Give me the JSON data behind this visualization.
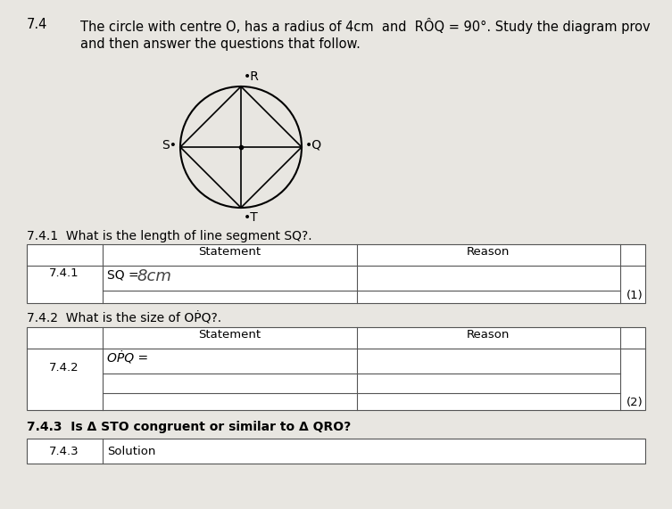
{
  "title_number": "7.4",
  "title_text": "The circle with centre O, has a radius of 4cm  and  RÔQ = 90°. Study the diagram prov",
  "subtitle_text": "and then answer the questions that follow.",
  "bg_color": "#e8e6e1",
  "q741_label": "7.4.1  What is the length of line segment SQ?.",
  "q742_label": "7.4.2  What is the size of OṖQ?.",
  "q743_label": "7.4.3  Is Δ STO congruent or similar to Δ QRO?",
  "table741": {
    "number": "7.4.1",
    "col1": "Statement",
    "col2": "Reason",
    "row1_col1": "SQ =  8cm",
    "mark": "(1)"
  },
  "table742": {
    "number": "7.4.2",
    "col1": "Statement",
    "col2": "Reason",
    "row1_col1": "OṖQ =",
    "mark": "(2)"
  },
  "font_size_title": 10.5,
  "font_size_body": 10,
  "font_size_table": 9.5
}
